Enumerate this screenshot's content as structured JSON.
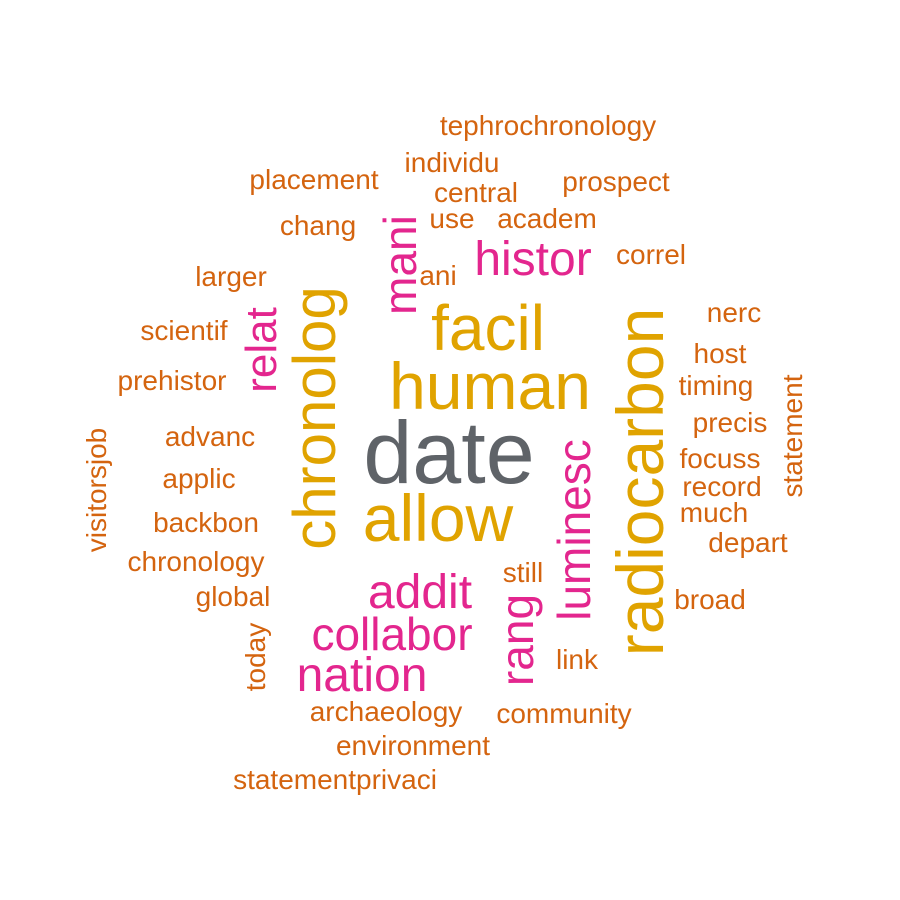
{
  "word_cloud": {
    "colors": {
      "grey": "#5f6368",
      "gold": "#e0a300",
      "pink": "#e3268e",
      "orange": "#d4640f"
    },
    "words": [
      {
        "text": "date",
        "color": "grey"
      },
      {
        "text": "human",
        "color": "gold"
      },
      {
        "text": "allow",
        "color": "gold"
      },
      {
        "text": "facil",
        "color": "gold"
      },
      {
        "text": "radiocarbon",
        "color": "gold"
      },
      {
        "text": "chronolog",
        "color": "gold"
      },
      {
        "text": "histor",
        "color": "pink"
      },
      {
        "text": "addit",
        "color": "pink"
      },
      {
        "text": "collabor",
        "color": "pink"
      },
      {
        "text": "nation",
        "color": "pink"
      },
      {
        "text": "luminesc",
        "color": "pink"
      },
      {
        "text": "rang",
        "color": "pink"
      },
      {
        "text": "mani",
        "color": "pink"
      },
      {
        "text": "relat",
        "color": "pink"
      },
      {
        "text": "tephrochronology",
        "color": "orange"
      },
      {
        "text": "individu",
        "color": "orange"
      },
      {
        "text": "placement",
        "color": "orange"
      },
      {
        "text": "central",
        "color": "orange"
      },
      {
        "text": "prospect",
        "color": "orange"
      },
      {
        "text": "chang",
        "color": "orange"
      },
      {
        "text": "use",
        "color": "orange"
      },
      {
        "text": "academ",
        "color": "orange"
      },
      {
        "text": "correl",
        "color": "orange"
      },
      {
        "text": "larger",
        "color": "orange"
      },
      {
        "text": "ani",
        "color": "orange"
      },
      {
        "text": "nerc",
        "color": "orange"
      },
      {
        "text": "scientif",
        "color": "orange"
      },
      {
        "text": "host",
        "color": "orange"
      },
      {
        "text": "prehistor",
        "color": "orange"
      },
      {
        "text": "timing",
        "color": "orange"
      },
      {
        "text": "statement",
        "color": "orange"
      },
      {
        "text": "precis",
        "color": "orange"
      },
      {
        "text": "advanc",
        "color": "orange"
      },
      {
        "text": "visitorsjob",
        "color": "orange"
      },
      {
        "text": "focuss",
        "color": "orange"
      },
      {
        "text": "applic",
        "color": "orange"
      },
      {
        "text": "record",
        "color": "orange"
      },
      {
        "text": "much",
        "color": "orange"
      },
      {
        "text": "backbon",
        "color": "orange"
      },
      {
        "text": "depart",
        "color": "orange"
      },
      {
        "text": "chronology",
        "color": "orange"
      },
      {
        "text": "still",
        "color": "orange"
      },
      {
        "text": "global",
        "color": "orange"
      },
      {
        "text": "broad",
        "color": "orange"
      },
      {
        "text": "today",
        "color": "orange"
      },
      {
        "text": "link",
        "color": "orange"
      },
      {
        "text": "archaeology",
        "color": "orange"
      },
      {
        "text": "community",
        "color": "orange"
      },
      {
        "text": "environment",
        "color": "orange"
      },
      {
        "text": "statementprivaci",
        "color": "orange"
      }
    ]
  }
}
